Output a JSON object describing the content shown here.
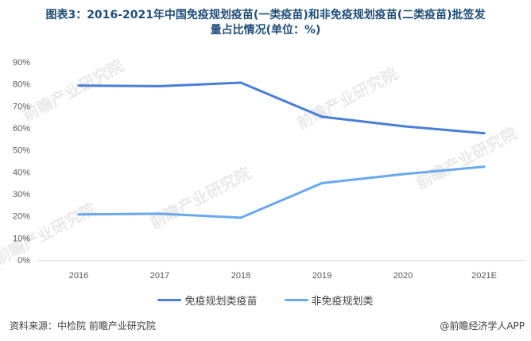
{
  "title_line1": "图表3：2016-2021年中国免疫规划疫苗(一类疫苗)和非免疫规划疫苗(二类疫苗)批签发",
  "title_line2": "量占比情况(单位：%)",
  "source": "资料来源：中检院 前瞻产业研究院",
  "brand": "@前瞻经济学人APP",
  "watermark": "前瞻产业研究院",
  "colors": {
    "series1": "#4a7fd6",
    "series2": "#6aa8ee",
    "axis_text": "#595959",
    "grid": "#d9d9d9"
  },
  "chart_data": {
    "type": "line",
    "title": "图表3：2016-2021年中国免疫规划疫苗(一类疫苗)和非免疫规划疫苗(二类疫苗)批签发量占比情况(单位：%)",
    "categories": [
      "2016",
      "2017",
      "2018",
      "2019",
      "2020",
      "2021E"
    ],
    "y_ticks": [
      "0%",
      "10%",
      "20%",
      "30%",
      "40%",
      "50%",
      "60%",
      "70%",
      "80%",
      "90%"
    ],
    "ylim": [
      0,
      90
    ],
    "grid": false,
    "legend_position": "bottom",
    "series": [
      {
        "name": "免疫规划类疫苗",
        "values": [
          79.3,
          79.0,
          80.6,
          65.1,
          60.8,
          57.6
        ]
      },
      {
        "name": "非免疫规划类",
        "values": [
          20.7,
          21.0,
          19.2,
          34.9,
          39.0,
          42.4
        ]
      }
    ]
  }
}
